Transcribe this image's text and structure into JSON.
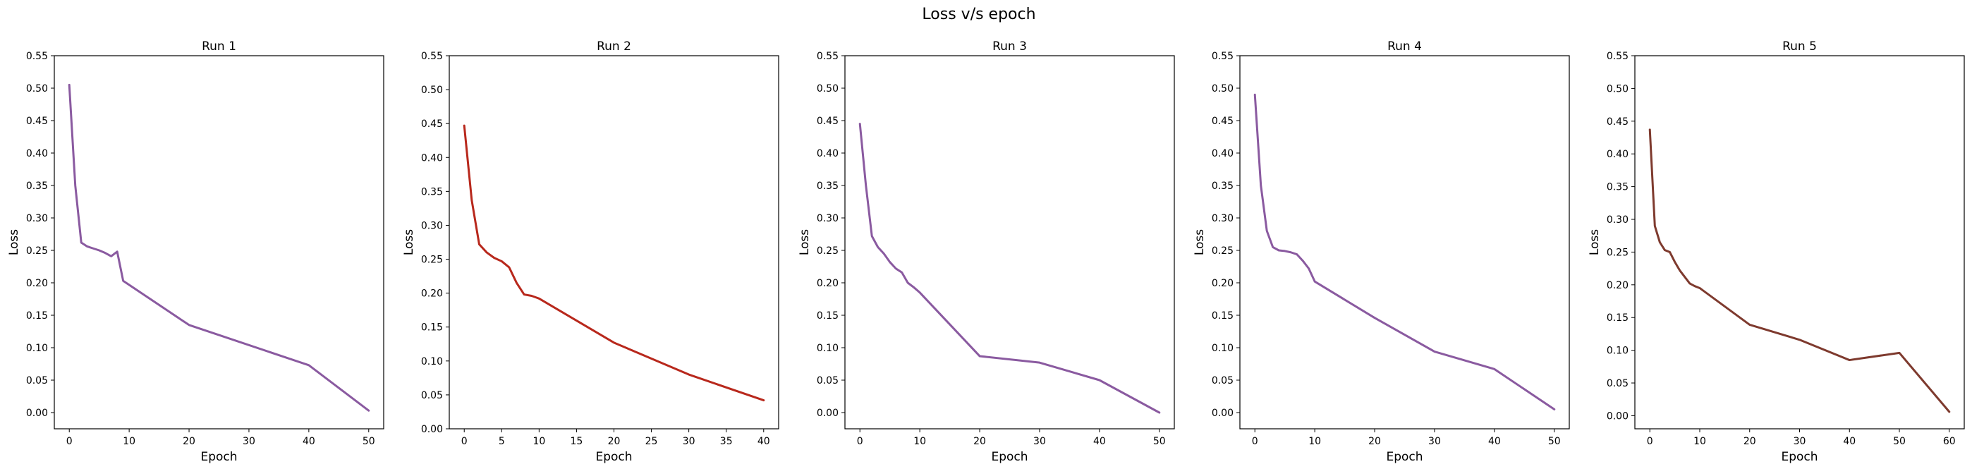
{
  "figure": {
    "suptitle": "Loss v/s epoch"
  },
  "chart_data": [
    {
      "type": "line",
      "title": "Run 1",
      "xlabel": "Epoch",
      "ylabel": "Loss",
      "xlim": [
        -2.5,
        52.5
      ],
      "ylim": [
        -0.025,
        0.55
      ],
      "xticks": [
        0,
        10,
        20,
        30,
        40,
        50
      ],
      "yticks": [
        "0.00",
        "0.05",
        "0.10",
        "0.15",
        "0.20",
        "0.25",
        "0.30",
        "0.35",
        "0.40",
        "0.45",
        "0.50",
        "0.55"
      ],
      "color": "#8a5aa0",
      "x": [
        0,
        1,
        2,
        3,
        4,
        5,
        6,
        7,
        8,
        9,
        20,
        40,
        50
      ],
      "y": [
        0.505,
        0.35,
        0.262,
        0.256,
        0.253,
        0.25,
        0.246,
        0.241,
        0.248,
        0.203,
        0.135,
        0.073,
        0.003
      ]
    },
    {
      "type": "line",
      "title": "Run 2",
      "xlabel": "Epoch",
      "ylabel": "Loss",
      "xlim": [
        -2,
        42
      ],
      "ylim": [
        0.0,
        0.55
      ],
      "xticks": [
        0,
        5,
        10,
        15,
        20,
        25,
        30,
        35,
        40
      ],
      "yticks": [
        "0.00",
        "0.05",
        "0.10",
        "0.15",
        "0.20",
        "0.25",
        "0.30",
        "0.35",
        "0.40",
        "0.45",
        "0.50",
        "0.55"
      ],
      "color": "#b8281c",
      "x": [
        0,
        1,
        2,
        3,
        4,
        5,
        6,
        7,
        8,
        9,
        10,
        20,
        30,
        40
      ],
      "y": [
        0.447,
        0.337,
        0.272,
        0.26,
        0.252,
        0.247,
        0.238,
        0.215,
        0.198,
        0.196,
        0.192,
        0.127,
        0.08,
        0.042
      ]
    },
    {
      "type": "line",
      "title": "Run 3",
      "xlabel": "Epoch",
      "ylabel": "Loss",
      "xlim": [
        -2.5,
        52.5
      ],
      "ylim": [
        -0.025,
        0.55
      ],
      "xticks": [
        0,
        10,
        20,
        30,
        40,
        50
      ],
      "yticks": [
        "0.00",
        "0.05",
        "0.10",
        "0.15",
        "0.20",
        "0.25",
        "0.30",
        "0.35",
        "0.40",
        "0.45",
        "0.50",
        "0.55"
      ],
      "color": "#8a5aa0",
      "x": [
        0,
        1,
        2,
        3,
        4,
        5,
        6,
        7,
        8,
        9,
        10,
        20,
        30,
        40,
        50
      ],
      "y": [
        0.445,
        0.35,
        0.272,
        0.255,
        0.245,
        0.232,
        0.222,
        0.216,
        0.2,
        0.193,
        0.185,
        0.087,
        0.077,
        0.05,
        0.0
      ]
    },
    {
      "type": "line",
      "title": "Run 4",
      "xlabel": "Epoch",
      "ylabel": "Loss",
      "xlim": [
        -2.5,
        52.5
      ],
      "ylim": [
        -0.025,
        0.55
      ],
      "xticks": [
        0,
        10,
        20,
        30,
        40,
        50
      ],
      "yticks": [
        "0.00",
        "0.05",
        "0.10",
        "0.15",
        "0.20",
        "0.25",
        "0.30",
        "0.35",
        "0.40",
        "0.45",
        "0.50",
        "0.55"
      ],
      "color": "#8a5aa0",
      "x": [
        0,
        1,
        2,
        3,
        4,
        5,
        6,
        7,
        8,
        9,
        10,
        20,
        30,
        40,
        50
      ],
      "y": [
        0.49,
        0.35,
        0.28,
        0.255,
        0.25,
        0.249,
        0.247,
        0.244,
        0.234,
        0.222,
        0.202,
        0.146,
        0.094,
        0.067,
        0.005
      ]
    },
    {
      "type": "line",
      "title": "Run 5",
      "xlabel": "Epoch",
      "ylabel": "Loss",
      "xlim": [
        -3,
        63
      ],
      "ylim": [
        -0.02,
        0.55
      ],
      "xticks": [
        0,
        10,
        20,
        30,
        40,
        50,
        60
      ],
      "yticks": [
        "0.00",
        "0.05",
        "0.10",
        "0.15",
        "0.20",
        "0.25",
        "0.30",
        "0.35",
        "0.40",
        "0.45",
        "0.50",
        "0.55"
      ],
      "color": "#7e3a2e",
      "x": [
        0,
        1,
        2,
        3,
        4,
        5,
        6,
        7,
        8,
        9,
        10,
        20,
        30,
        40,
        50,
        60
      ],
      "y": [
        0.437,
        0.29,
        0.265,
        0.253,
        0.25,
        0.235,
        0.222,
        0.212,
        0.202,
        0.198,
        0.195,
        0.139,
        0.116,
        0.085,
        0.096,
        0.006
      ]
    }
  ]
}
